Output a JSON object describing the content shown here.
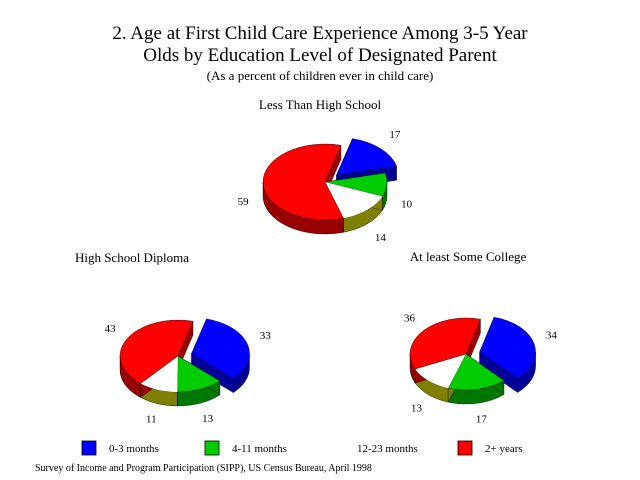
{
  "title_line1": "2. Age at First Child Care Experience Among 3-5 Year",
  "title_line2": "Olds by Education Level of Designated Parent",
  "subtitle": "(As a percent of children ever in child care)",
  "source": "Survey of Income and Program Participation (SIPP),  US Census Bureau, April 1998",
  "colors": {
    "0-3 months": "#0000ff",
    "4-11 months": "#00cc00",
    "12-23 months": "#ffffff",
    "2+ years": "#ff0000"
  },
  "chart_data": [
    {
      "type": "pie",
      "title": "Less Than High School",
      "categories": [
        "0-3 months",
        "4-11 months",
        "12-23 months",
        "2+ years"
      ],
      "values": [
        17,
        10,
        14,
        59
      ],
      "exploded": "0-3 months"
    },
    {
      "type": "pie",
      "title": "High School Diploma",
      "categories": [
        "0-3 months",
        "4-11 months",
        "12-23 months",
        "2+ years"
      ],
      "values": [
        33,
        13,
        11,
        43
      ],
      "exploded": "0-3 months"
    },
    {
      "type": "pie",
      "title": "At least Some College",
      "categories": [
        "0-3 months",
        "4-11 months",
        "12-23 months",
        "2+ years"
      ],
      "values": [
        34,
        17,
        13,
        36
      ],
      "exploded": "0-3 months"
    }
  ],
  "legend": [
    {
      "label": "0-3 months",
      "color": "#0000ff"
    },
    {
      "label": "4-11 months",
      "color": "#00cc00"
    },
    {
      "label": "12-23 months",
      "color": "#ffffff"
    },
    {
      "label": "2+ years",
      "color": "#ff0000"
    }
  ]
}
